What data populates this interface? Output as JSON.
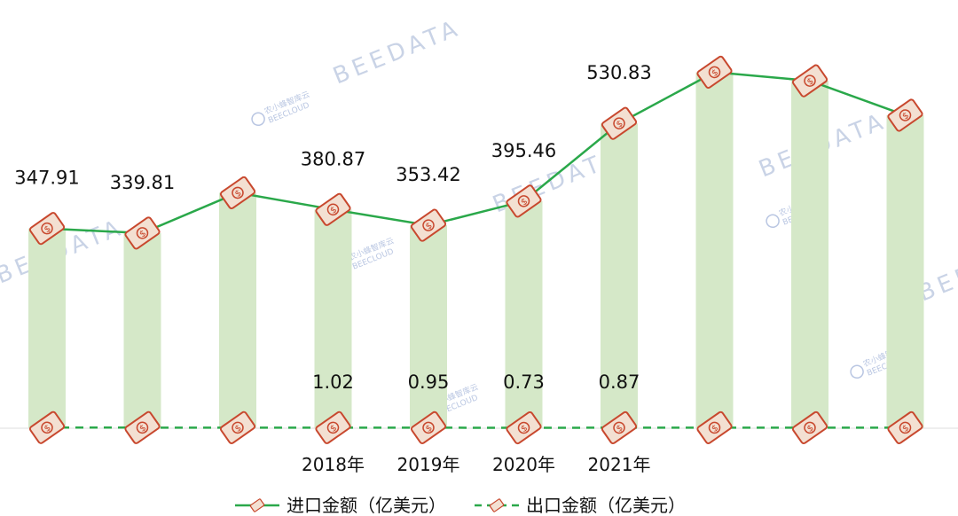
{
  "chart_data": {
    "type": "bar",
    "categories": [
      "",
      "",
      "",
      "2018年",
      "2019年",
      "2020年",
      "2021年",
      "",
      "",
      ""
    ],
    "series": [
      {
        "name": "进口金额（亿美元）",
        "type": "line",
        "line_style": "solid",
        "color": "#2aa84a",
        "values": [
          347.91,
          339.81,
          410,
          380.87,
          353.42,
          395.46,
          530.83,
          620,
          605,
          545
        ],
        "labels": [
          "347.91",
          "339.81",
          "",
          "380.87",
          "353.42",
          "395.46",
          "530.83",
          "",
          "",
          ""
        ]
      },
      {
        "name": "出口金额（亿美元）",
        "type": "line",
        "line_style": "dashed",
        "color": "#2aa84a",
        "values": [
          1.1,
          1.05,
          1.0,
          1.02,
          0.95,
          0.73,
          0.87,
          0.9,
          0.9,
          0.9
        ],
        "labels": [
          "",
          "",
          "",
          "1.02",
          "0.95",
          "0.73",
          "0.87",
          "",
          "",
          ""
        ]
      }
    ],
    "bars_color": "#d5e8c8",
    "marker_color": "#c8482e",
    "ylim": [
      0,
      650
    ],
    "grid": false,
    "legend_position": "bottom-center"
  },
  "watermarks": {
    "brand": "BEEDATA",
    "sub_cn": "农小蜂智库云",
    "sub_en": "BEECLOUD"
  }
}
